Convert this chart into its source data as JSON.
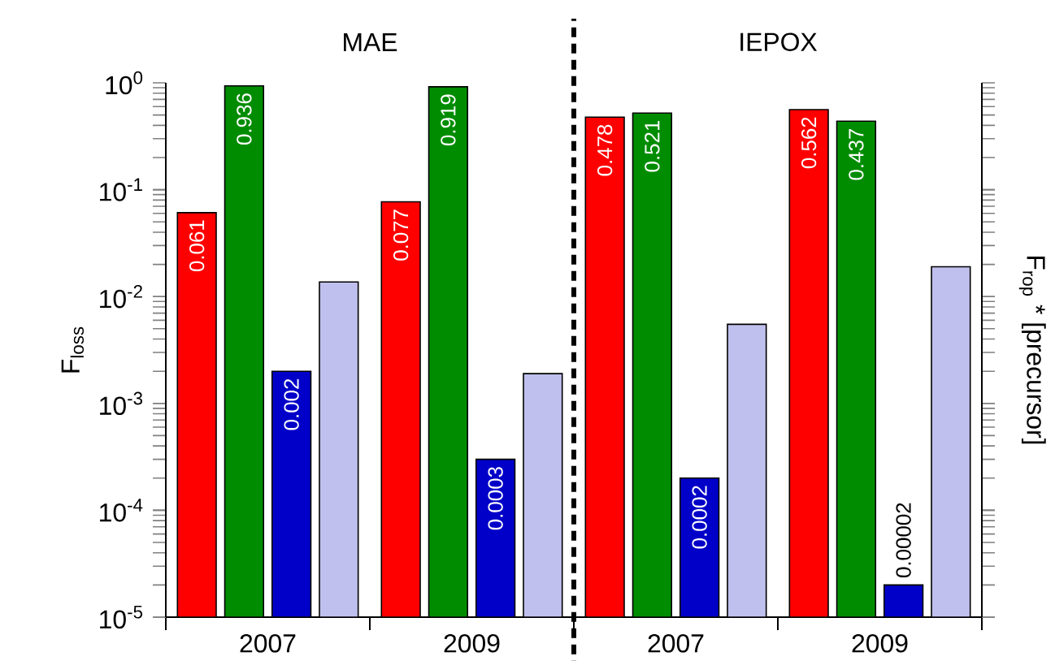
{
  "chart_data": {
    "type": "bar",
    "ylabel": "F$_{loss}$",
    "y2label": "F$_{rop}$ * [precursor]",
    "log": "y",
    "categories": [
      "2007",
      "2009",
      "2007",
      "2009"
    ],
    "series": [
      {
        "color": "#ff0000",
        "values": [
          0.061,
          0.077,
          0.478,
          0.562
        ],
        "value_labels": [
          "0.061",
          "0.077",
          "0.478",
          "0.562"
        ]
      },
      {
        "color": "#008c00",
        "values": [
          0.936,
          0.919,
          0.521,
          0.437
        ],
        "value_labels": [
          "0.936",
          "0.919",
          "0.521",
          "0.437"
        ]
      },
      {
        "color": "#0000c8",
        "values": [
          0.002,
          0.0003,
          0.0002,
          2e-05
        ],
        "value_labels": [
          "0.002",
          "0.0003",
          "0.0002",
          "0.00002"
        ]
      },
      {
        "color": "#c0c0ee",
        "values": [
          0.0137,
          0.0019,
          0.0055,
          0.019
        ]
      }
    ],
    "ylim": [
      1e-05,
      1
    ],
    "yticks": [
      {
        "value": 1e-05,
        "label": "10$^{-5}$"
      },
      {
        "value": 0.0001,
        "label": "10$^{-4}$"
      },
      {
        "value": 0.001,
        "label": "10$^{-3}$"
      },
      {
        "value": 0.01,
        "label": "10$^{-2}$"
      },
      {
        "value": 0.1,
        "label": "10$^{-1}$"
      },
      {
        "value": 1,
        "label": "10$^{0}$"
      }
    ],
    "annotations": [
      "MAE",
      "IEPOX"
    ],
    "grid": false
  }
}
